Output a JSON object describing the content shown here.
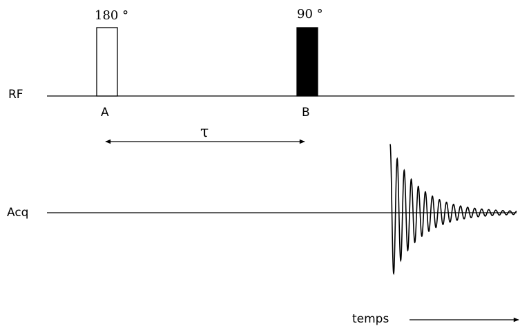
{
  "diagram": {
    "rf_label": "RF",
    "acq_label": "Acq",
    "pulse_a": {
      "angle": "180 °",
      "label": "A",
      "fill": "#ffffff"
    },
    "pulse_b": {
      "angle": "90 °",
      "label": "B",
      "fill": "#000000"
    },
    "delay_label": "τ",
    "time_label": "temps",
    "signal": "free induction decay"
  }
}
